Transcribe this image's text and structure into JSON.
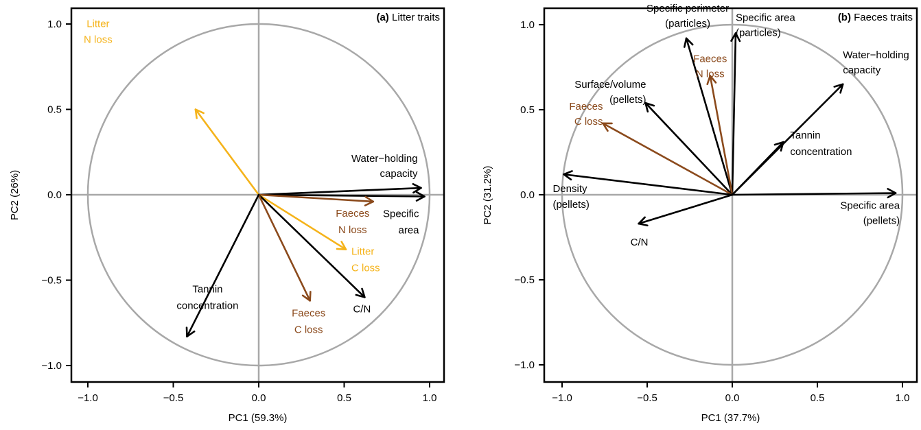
{
  "chart_data": [
    {
      "type": "scatter",
      "subtype": "pca-correlation-circle",
      "title_letter": "(a)",
      "title": "Litter traits",
      "xlabel": "PC1 (59.3%)",
      "ylabel": "PC2 (26%)",
      "xlim": [
        -1.1,
        1.1
      ],
      "ylim": [
        -1.1,
        1.1
      ],
      "xticks": [
        -1.0,
        -0.5,
        0.0,
        0.5,
        1.0
      ],
      "yticks": [
        -1.0,
        -0.5,
        0.0,
        0.5,
        1.0
      ],
      "xtick_labels": [
        "−1.0",
        "−0.5",
        "0.0",
        "0.5",
        "1.0"
      ],
      "ytick_labels": [
        "−1.0",
        "−0.5",
        "0.0",
        "0.5",
        "1.0"
      ],
      "unit_circle": true,
      "grid": false,
      "vectors": [
        {
          "lines": [
            "Litter",
            "N loss"
          ],
          "x": -0.37,
          "y": 0.5,
          "color": "#f5b31a",
          "anchor": "middle"
        },
        {
          "lines": [
            "Water−holding",
            "capacity"
          ],
          "x": 0.95,
          "y": 0.04,
          "color": "#000000",
          "anchor": "end"
        },
        {
          "lines": [
            "Specific",
            "area"
          ],
          "x": 0.97,
          "y": -0.01,
          "color": "#000000",
          "anchor": "end"
        },
        {
          "lines": [
            "Faeces",
            "N loss"
          ],
          "x": 0.67,
          "y": -0.04,
          "color": "#8b4a1c",
          "anchor": "middle"
        },
        {
          "lines": [
            "Litter",
            "C loss"
          ],
          "x": 0.51,
          "y": -0.32,
          "color": "#f5b31a",
          "anchor": "start"
        },
        {
          "lines": [
            "C/N"
          ],
          "x": 0.62,
          "y": -0.6,
          "color": "#000000",
          "anchor": "middle"
        },
        {
          "lines": [
            "Faeces",
            "C loss"
          ],
          "x": 0.3,
          "y": -0.62,
          "color": "#8b4a1c",
          "anchor": "middle"
        },
        {
          "lines": [
            "Tannin",
            "concentration"
          ],
          "x": -0.42,
          "y": -0.83,
          "color": "#000000",
          "anchor": "middle"
        }
      ]
    },
    {
      "type": "scatter",
      "subtype": "pca-correlation-circle",
      "title_letter": "(b)",
      "title": "Faeces traits",
      "xlabel": "PC1 (37.7%)",
      "ylabel": "PC2 (31.2%)",
      "xlim": [
        -1.1,
        1.1
      ],
      "ylim": [
        -1.1,
        1.1
      ],
      "xticks": [
        -1.0,
        -0.5,
        0.0,
        0.5,
        1.0
      ],
      "yticks": [
        -1.0,
        -0.5,
        0.0,
        0.5,
        1.0
      ],
      "xtick_labels": [
        "−1.0",
        "−0.5",
        "0.0",
        "0.5",
        "1.0"
      ],
      "ytick_labels": [
        "−1.0",
        "−0.5",
        "0.0",
        "0.5",
        "1.0"
      ],
      "unit_circle": true,
      "grid": false,
      "vectors": [
        {
          "lines": [
            "Specific perimeter",
            "(particles)"
          ],
          "x": -0.27,
          "y": 0.92,
          "color": "#000000",
          "anchor": "middle"
        },
        {
          "lines": [
            "Specific area",
            "(particles)"
          ],
          "x": 0.02,
          "y": 0.95,
          "color": "#000000",
          "anchor": "start"
        },
        {
          "lines": [
            "Faeces",
            "N loss"
          ],
          "x": -0.13,
          "y": 0.7,
          "color": "#8b4a1c",
          "anchor": "middle"
        },
        {
          "lines": [
            "Surface/volume",
            "(pellets)"
          ],
          "x": -0.51,
          "y": 0.54,
          "color": "#000000",
          "anchor": "end"
        },
        {
          "lines": [
            "Faeces",
            "C loss"
          ],
          "x": -0.76,
          "y": 0.42,
          "color": "#8b4a1c",
          "anchor": "end"
        },
        {
          "lines": [
            "Water−holding",
            "capacity"
          ],
          "x": 0.65,
          "y": 0.65,
          "color": "#000000",
          "anchor": "start"
        },
        {
          "lines": [
            "Tannin",
            "concentration"
          ],
          "x": 0.3,
          "y": 0.31,
          "color": "#000000",
          "anchor": "start"
        },
        {
          "lines": [
            "Density",
            "(pellets)"
          ],
          "x": -0.99,
          "y": 0.12,
          "color": "#000000",
          "anchor": "start"
        },
        {
          "lines": [
            "Specific area",
            "(pellets)"
          ],
          "x": 0.96,
          "y": 0.01,
          "color": "#000000",
          "anchor": "end"
        },
        {
          "lines": [
            "C/N"
          ],
          "x": -0.55,
          "y": -0.17,
          "color": "#000000",
          "anchor": "middle"
        }
      ]
    }
  ]
}
